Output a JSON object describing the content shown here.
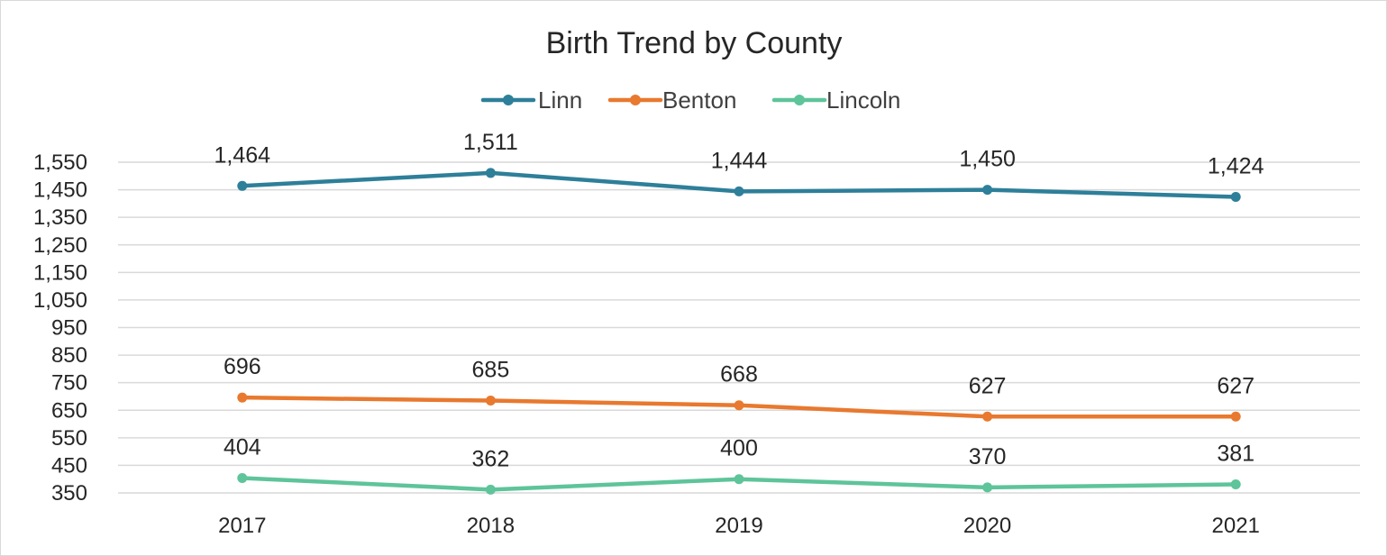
{
  "chart_data": {
    "type": "line",
    "title": "Birth Trend by County",
    "xlabel": "",
    "ylabel": "",
    "categories": [
      "2017",
      "2018",
      "2019",
      "2020",
      "2021"
    ],
    "ylim": [
      350,
      1550
    ],
    "yticks": [
      350,
      450,
      550,
      650,
      750,
      850,
      950,
      1050,
      1150,
      1250,
      1350,
      1450,
      1550
    ],
    "ytick_labels": [
      "350",
      "450",
      "550",
      "650",
      "750",
      "850",
      "950",
      "1,050",
      "1,150",
      "1,250",
      "1,350",
      "1,450",
      "1,550"
    ],
    "grid": true,
    "legend": "top",
    "series": [
      {
        "name": "Linn",
        "color": "#2e7f99",
        "values": [
          1464,
          1511,
          1444,
          1450,
          1424
        ],
        "labels": [
          "1,464",
          "1,511",
          "1,444",
          "1,450",
          "1,424"
        ]
      },
      {
        "name": "Benton",
        "color": "#e8792f",
        "values": [
          696,
          685,
          668,
          627,
          627
        ],
        "labels": [
          "696",
          "685",
          "668",
          "627",
          "627"
        ]
      },
      {
        "name": "Lincoln",
        "color": "#5ec49a",
        "values": [
          404,
          362,
          400,
          370,
          381
        ],
        "labels": [
          "404",
          "362",
          "400",
          "370",
          "381"
        ]
      }
    ]
  }
}
